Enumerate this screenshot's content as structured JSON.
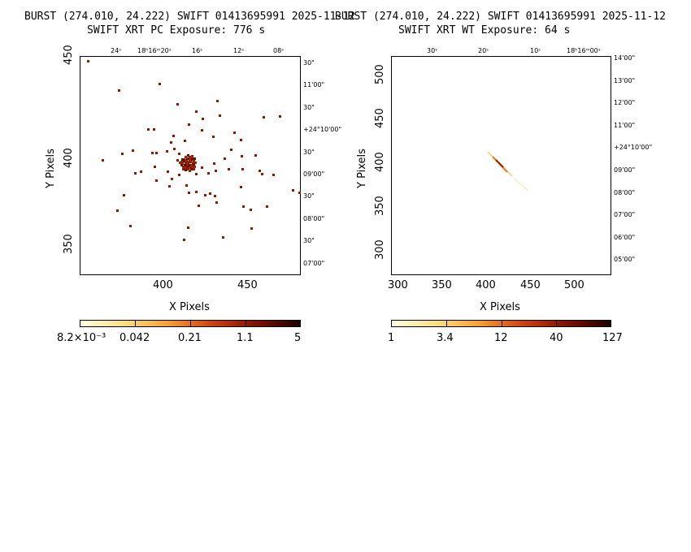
{
  "panels": [
    {
      "id": "pc",
      "title": "BURST (274.010, 24.222) SWIFT 01413695991 2025-11-12",
      "subtitle": "SWIFT XRT PC Exposure:        776 s",
      "xlabel": "X Pixels",
      "ylabel": "Y Pixels",
      "x_ticks": [
        "400",
        "450"
      ],
      "y_ticks": [
        "450",
        "400",
        "350"
      ],
      "ra_ticks": [
        "24ˢ",
        "18ʰ16ᵐ20ˢ",
        "16ˢ",
        "12ˢ",
        "08ˢ"
      ],
      "dec_ticks": [
        "30\"",
        "11'00\"",
        "30\"",
        "+24°10'00\"",
        "30\"",
        "09'00\"",
        "30\"",
        "08'00\"",
        "30\"",
        "07'00\""
      ],
      "colorbar_ticks": [
        "8.2×10⁻³",
        "0.042",
        "0.21",
        "1.1",
        "5"
      ]
    },
    {
      "id": "wt",
      "title": "BURST (274.010, 24.222) SWIFT 01413695991 2025-11-12",
      "subtitle": "SWIFT XRT WT Exposure:         64 s",
      "xlabel": "X Pixels",
      "ylabel": "Y Pixels",
      "x_ticks": [
        "300",
        "350",
        "400",
        "450",
        "500"
      ],
      "y_ticks": [
        "500",
        "450",
        "400",
        "350",
        "300"
      ],
      "ra_ticks": [
        "30ˢ",
        "20ˢ",
        "10ˢ",
        "18ʰ16ᵐ00ˢ"
      ],
      "dec_ticks": [
        "14'00\"",
        "13'00\"",
        "12'00\"",
        "11'00\"",
        "+24°10'00\"",
        "09'00\"",
        "08'00\"",
        "07'00\"",
        "06'00\"",
        "05'00\""
      ],
      "colorbar_ticks": [
        "1",
        "3.4",
        "12",
        "40",
        "127"
      ]
    }
  ],
  "colors": {
    "pixel": "#8b1a00",
    "colormap": [
      "#ffffe0",
      "#ffd060",
      "#f08020",
      "#b03000",
      "#500000",
      "#000000"
    ]
  }
}
